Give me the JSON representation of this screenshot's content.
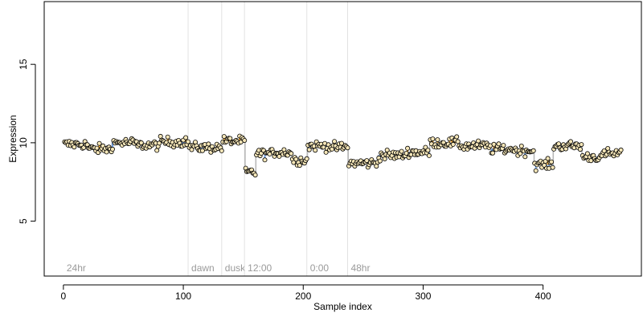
{
  "chart_data": {
    "type": "scatter",
    "xlabel": "Sample index",
    "ylabel": "Expression",
    "xlim": [
      -16,
      482
    ],
    "ylim": [
      1.5,
      19
    ],
    "x_ticks": [
      0,
      100,
      200,
      300,
      400
    ],
    "y_ticks": [
      5,
      10,
      15
    ],
    "grid": false,
    "markers": [
      {
        "x": 0,
        "label": "24hr"
      },
      {
        "x": 104,
        "label": "dawn"
      },
      {
        "x": 132,
        "label": "dusk"
      },
      {
        "x": 151,
        "label": "12:00"
      },
      {
        "x": 203,
        "label": "0:00"
      },
      {
        "x": 237,
        "label": "48hr"
      }
    ],
    "segments": [
      {
        "x0": 1,
        "x1": 20,
        "mean": 9.9
      },
      {
        "x0": 21,
        "x1": 40,
        "mean": 9.6
      },
      {
        "x0": 41,
        "x1": 60,
        "mean": 10.0
      },
      {
        "x0": 61,
        "x1": 80,
        "mean": 9.85
      },
      {
        "x0": 81,
        "x1": 104,
        "mean": 10.05
      },
      {
        "x0": 105,
        "x1": 132,
        "mean": 9.7
      },
      {
        "x0": 133,
        "x1": 151,
        "mean": 10.1
      },
      {
        "x0": 152,
        "x1": 160,
        "mean": 8.1
      },
      {
        "x0": 161,
        "x1": 175,
        "mean": 9.3
      },
      {
        "x0": 176,
        "x1": 190,
        "mean": 9.4
      },
      {
        "x0": 191,
        "x1": 203,
        "mean": 8.9
      },
      {
        "x0": 204,
        "x1": 222,
        "mean": 9.8
      },
      {
        "x0": 223,
        "x1": 237,
        "mean": 9.7
      },
      {
        "x0": 238,
        "x1": 262,
        "mean": 8.7
      },
      {
        "x0": 263,
        "x1": 285,
        "mean": 9.2
      },
      {
        "x0": 286,
        "x1": 305,
        "mean": 9.4
      },
      {
        "x0": 306,
        "x1": 330,
        "mean": 10.0
      },
      {
        "x0": 331,
        "x1": 355,
        "mean": 9.8
      },
      {
        "x0": 356,
        "x1": 375,
        "mean": 9.6
      },
      {
        "x0": 376,
        "x1": 392,
        "mean": 9.5
      },
      {
        "x0": 393,
        "x1": 408,
        "mean": 8.6
      },
      {
        "x0": 409,
        "x1": 432,
        "mean": 9.8
      },
      {
        "x0": 433,
        "x1": 450,
        "mean": 9.1
      },
      {
        "x0": 451,
        "x1": 465,
        "mean": 9.3
      }
    ],
    "colors": {
      "point_fill": "#f5e6b8",
      "point_stroke": "#000000",
      "fitted_above": "#f0a020",
      "fitted_below": "#6f9fe0",
      "step_line": "#b8b8b8",
      "marker_line": "#e2e2e2",
      "annotation_text": "#9a9a9a"
    }
  }
}
